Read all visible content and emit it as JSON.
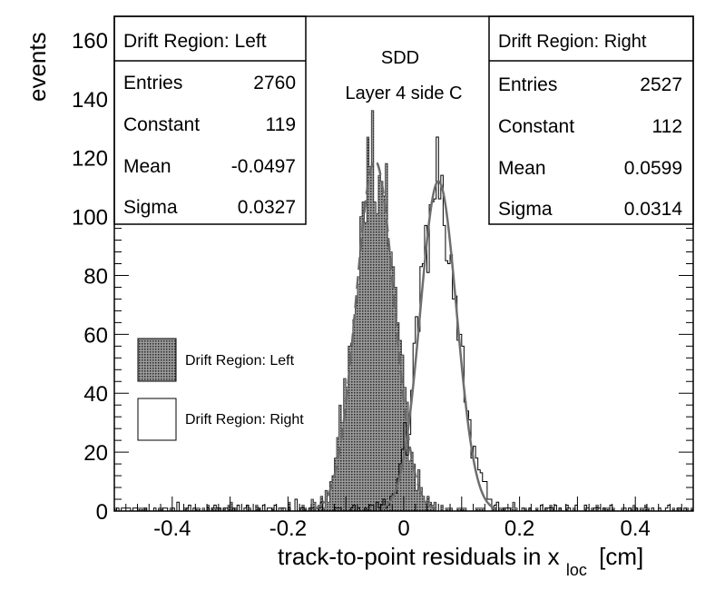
{
  "chart_data": {
    "type": "histogram",
    "title": "SDD",
    "subtitle": "Layer 4 side C",
    "xlabel_main": "track-to-point residuals in x",
    "xlabel_sub": "loc",
    "xlabel_unit": "[cm]",
    "ylabel": "events",
    "xlim": [
      -0.5,
      0.5
    ],
    "ylim": [
      0,
      168
    ],
    "x_ticks": [
      -0.4,
      -0.2,
      0,
      0.2,
      0.4
    ],
    "x_tick_labels": [
      "-0.4",
      "-0.2",
      "0",
      "0.2",
      "0.4"
    ],
    "y_ticks": [
      0,
      20,
      40,
      60,
      80,
      100,
      120,
      140,
      160
    ],
    "y_tick_labels": [
      "0",
      "20",
      "40",
      "60",
      "80",
      "100",
      "120",
      "140",
      "160"
    ],
    "bin_width": 0.004,
    "series": [
      {
        "name": "Drift Region: Left",
        "style": "filled-dotted",
        "color": "#555555",
        "entries": 2760,
        "constant": 119,
        "mean": -0.0497,
        "sigma": 0.0327,
        "fit_style": "dashed",
        "peak_count": 136
      },
      {
        "name": "Drift Region: Right",
        "style": "outline",
        "color": "#000000",
        "entries": 2527,
        "constant": 112,
        "mean": 0.0599,
        "sigma": 0.0314,
        "fit_style": "solid",
        "fit_color": "#6e6e6e",
        "peak_count": 127
      }
    ],
    "stats_boxes": {
      "left": {
        "title": "Drift Region: Left",
        "rows": [
          {
            "label": "Entries",
            "value": "2760"
          },
          {
            "label": "Constant",
            "value": "119"
          },
          {
            "label": "Mean",
            "value": "-0.0497"
          },
          {
            "label": "Sigma",
            "value": "0.0327"
          }
        ]
      },
      "right": {
        "title": "Drift Region: Right",
        "rows": [
          {
            "label": "Entries",
            "value": "2527"
          },
          {
            "label": "Constant",
            "value": "112"
          },
          {
            "label": "Mean",
            "value": "0.0599"
          },
          {
            "label": "Sigma",
            "value": "0.0314"
          }
        ]
      }
    },
    "legend": {
      "placement": "middle-left",
      "entries": [
        {
          "label": "Drift Region: Left",
          "style": "filled"
        },
        {
          "label": "Drift Region: Right",
          "style": "outline"
        }
      ]
    }
  }
}
